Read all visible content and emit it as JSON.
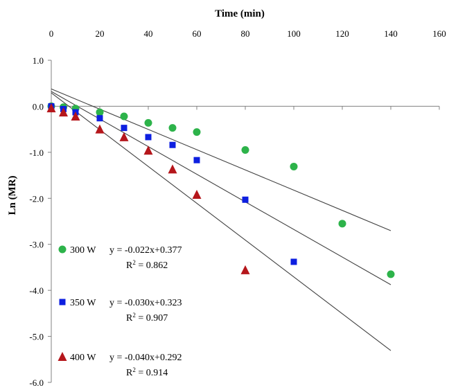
{
  "chart_data": {
    "type": "scatter",
    "xlabel": "Time (min)",
    "ylabel": "Ln (MR)",
    "xlim": [
      0,
      160
    ],
    "ylim": [
      -6.0,
      1.0
    ],
    "x_axis_position": "top",
    "x_ticks": [
      "0",
      "20",
      "40",
      "60",
      "80",
      "100",
      "120",
      "140",
      "160"
    ],
    "y_ticks": [
      "1.0",
      "0.0",
      "-1.0",
      "-2.0",
      "-3.0",
      "-4.0",
      "-5.0",
      "-6.0"
    ],
    "grid": false,
    "series": [
      {
        "name": "300 W",
        "marker": "circle",
        "color": "#2db34a",
        "x": [
          0,
          5,
          10,
          20,
          30,
          40,
          50,
          60,
          80,
          100,
          120,
          140
        ],
        "y": [
          0.0,
          -0.02,
          -0.05,
          -0.13,
          -0.22,
          -0.36,
          -0.47,
          -0.56,
          -0.95,
          -1.31,
          -2.55,
          -3.65
        ],
        "fit": {
          "slope": -0.022,
          "intercept": 0.377,
          "x_end": 140
        },
        "equation": "y = -0.022x+0.377",
        "r2_label": "R",
        "r2_value": " = 0.862"
      },
      {
        "name": "350 W",
        "marker": "square",
        "color": "#0d1fe0",
        "x": [
          0,
          5,
          10,
          20,
          30,
          40,
          50,
          60,
          80,
          100
        ],
        "y": [
          0.0,
          -0.06,
          -0.13,
          -0.26,
          -0.47,
          -0.67,
          -0.84,
          -1.17,
          -2.03,
          -3.38
        ],
        "fit": {
          "slope": -0.03,
          "intercept": 0.323,
          "x_end": 140
        },
        "equation": "y = -0.030x+0.323",
        "r2_label": "R",
        "r2_value": " = 0.907"
      },
      {
        "name": "400 W",
        "marker": "triangle",
        "color": "#b5161b",
        "x": [
          0,
          5,
          10,
          20,
          30,
          40,
          50,
          60,
          80
        ],
        "y": [
          -0.04,
          -0.13,
          -0.22,
          -0.5,
          -0.67,
          -0.96,
          -1.37,
          -1.92,
          -3.56
        ],
        "fit": {
          "slope": -0.04,
          "intercept": 0.292,
          "x_end": 140
        },
        "equation": "y = -0.040x+0.292",
        "r2_label": "R",
        "r2_value": " = 0.914"
      }
    ],
    "legend_position": "bottom-left"
  }
}
